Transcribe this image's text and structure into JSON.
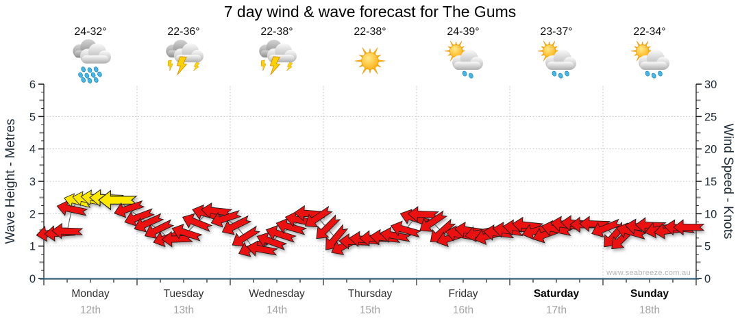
{
  "title": "7 day wind & wave forecast for The Gums",
  "watermark": "www.seabreeze.com.au",
  "chart_data": {
    "type": "wind-arrow-line",
    "title": "7 day wind & wave forecast for The Gums",
    "left_axis": {
      "label": "Wave Height - Metres",
      "min": 0,
      "max": 6,
      "tick_major": 1
    },
    "right_axis": {
      "label": "Wind Speed - Knots",
      "min": 0,
      "max": 30,
      "tick_major": 5
    },
    "grid": {
      "horizontal_at_metres": [
        1,
        2,
        3,
        4,
        5
      ],
      "vertical_at_day_boundaries": true
    },
    "days": [
      {
        "label": "Monday",
        "date": "12th",
        "bold": false,
        "temp": "24-32°",
        "icon": "rain"
      },
      {
        "label": "Tuesday",
        "date": "13th",
        "bold": false,
        "temp": "22-36°",
        "icon": "storm"
      },
      {
        "label": "Wednesday",
        "date": "14th",
        "bold": false,
        "temp": "22-38°",
        "icon": "storm"
      },
      {
        "label": "Thursday",
        "date": "15th",
        "bold": false,
        "temp": "22-38°",
        "icon": "sun"
      },
      {
        "label": "Friday",
        "date": "16th",
        "bold": false,
        "temp": "24-39°",
        "icon": "sun-shower-light"
      },
      {
        "label": "Saturday",
        "date": "17th",
        "bold": true,
        "temp": "23-37°",
        "icon": "sun-shower"
      },
      {
        "label": "Sunday",
        "date": "18th",
        "bold": true,
        "temp": "22-34°",
        "icon": "sun-shower"
      }
    ],
    "colors": {
      "red": "#ec1111",
      "yellow": "#ffe800",
      "outline": "#1c1c1c",
      "baseline": "#2f5f7e",
      "gridline": "#b9b9b9",
      "trend": "#5a5a5a"
    },
    "arrow_format": [
      "t_days_from_start",
      "knots",
      "tilt_deg_tip_up_positive",
      "color",
      "scale"
    ],
    "arrows": [
      [
        0.08,
        7.0,
        -8,
        "red",
        1
      ],
      [
        0.17,
        7.0,
        -4,
        "red",
        1
      ],
      [
        0.25,
        7.3,
        2,
        "red",
        1
      ],
      [
        0.3,
        10.7,
        12,
        "red",
        1
      ],
      [
        0.36,
        11.9,
        14,
        "yellow",
        0.9
      ],
      [
        0.46,
        12.2,
        10,
        "yellow",
        0.95
      ],
      [
        0.56,
        12.4,
        6,
        "yellow",
        1
      ],
      [
        0.67,
        12.4,
        2,
        "yellow",
        1.1
      ],
      [
        0.79,
        12.1,
        0,
        "yellow",
        1.25
      ],
      [
        0.91,
        10.8,
        -18,
        "red",
        1
      ],
      [
        1.02,
        9.5,
        -20,
        "red",
        1
      ],
      [
        1.12,
        8.6,
        -24,
        "red",
        1
      ],
      [
        1.23,
        7.6,
        -26,
        "red",
        1
      ],
      [
        1.33,
        6.3,
        -18,
        "red",
        1
      ],
      [
        1.43,
        6.1,
        -2,
        "red",
        1
      ],
      [
        1.53,
        7.0,
        18,
        "red",
        1
      ],
      [
        1.64,
        8.6,
        22,
        "red",
        1
      ],
      [
        1.75,
        10.0,
        16,
        "red",
        1
      ],
      [
        1.85,
        10.4,
        6,
        "red",
        1
      ],
      [
        1.95,
        9.3,
        -18,
        "red",
        1
      ],
      [
        2.06,
        8.2,
        -26,
        "red",
        1
      ],
      [
        2.16,
        6.4,
        -32,
        "red",
        1
      ],
      [
        2.24,
        4.8,
        -24,
        "red",
        1
      ],
      [
        2.34,
        4.5,
        10,
        "red",
        1
      ],
      [
        2.44,
        5.7,
        20,
        "red",
        1
      ],
      [
        2.54,
        6.8,
        18,
        "red",
        1
      ],
      [
        2.65,
        7.9,
        16,
        "red",
        1
      ],
      [
        2.75,
        9.0,
        12,
        "red",
        1
      ],
      [
        2.85,
        10.0,
        4,
        "red",
        1
      ],
      [
        2.94,
        9.4,
        -34,
        "red",
        1
      ],
      [
        3.04,
        7.8,
        -45,
        "red",
        1
      ],
      [
        3.13,
        6.2,
        -50,
        "red",
        1
      ],
      [
        3.23,
        5.1,
        -28,
        "red",
        1
      ],
      [
        3.33,
        5.7,
        2,
        "red",
        1
      ],
      [
        3.44,
        6.0,
        6,
        "red",
        1
      ],
      [
        3.55,
        6.2,
        0,
        "red",
        1
      ],
      [
        3.66,
        6.3,
        6,
        "red",
        1
      ],
      [
        3.77,
        6.6,
        10,
        "red",
        1
      ],
      [
        3.88,
        7.5,
        16,
        "red",
        1
      ],
      [
        3.98,
        9.3,
        18,
        "red",
        1
      ],
      [
        4.07,
        9.9,
        2,
        "red",
        1
      ],
      [
        4.17,
        8.7,
        -34,
        "red",
        1
      ],
      [
        4.27,
        7.2,
        -42,
        "red",
        1
      ],
      [
        4.37,
        6.3,
        -18,
        "red",
        1
      ],
      [
        4.47,
        6.8,
        10,
        "red",
        1
      ],
      [
        4.57,
        7.4,
        8,
        "red",
        1
      ],
      [
        4.68,
        7.0,
        -12,
        "red",
        1
      ],
      [
        4.78,
        6.6,
        -16,
        "red",
        1
      ],
      [
        4.88,
        7.0,
        6,
        "red",
        1
      ],
      [
        4.98,
        7.4,
        8,
        "red",
        1
      ],
      [
        5.09,
        7.8,
        6,
        "red",
        1
      ],
      [
        5.19,
        8.2,
        6,
        "red",
        1
      ],
      [
        5.29,
        7.4,
        -16,
        "red",
        1
      ],
      [
        5.4,
        6.9,
        -20,
        "red",
        1
      ],
      [
        5.5,
        7.6,
        12,
        "red",
        1
      ],
      [
        5.6,
        8.3,
        8,
        "red",
        1
      ],
      [
        5.71,
        8.5,
        4,
        "red",
        1
      ],
      [
        5.81,
        8.3,
        0,
        "red",
        1
      ],
      [
        5.91,
        8.4,
        2,
        "red",
        1
      ],
      [
        6.03,
        7.8,
        -22,
        "red",
        1
      ],
      [
        6.12,
        6.6,
        -48,
        "red",
        1
      ],
      [
        6.21,
        6.2,
        -44,
        "red",
        1
      ],
      [
        6.3,
        7.2,
        16,
        "red",
        1
      ],
      [
        6.4,
        7.9,
        8,
        "red",
        1
      ],
      [
        6.51,
        8.2,
        2,
        "red",
        1
      ],
      [
        6.61,
        7.6,
        -12,
        "red",
        1
      ],
      [
        6.71,
        7.4,
        -8,
        "red",
        1
      ],
      [
        6.82,
        7.8,
        6,
        "red",
        1
      ],
      [
        6.92,
        7.9,
        0,
        "red",
        1
      ]
    ]
  }
}
